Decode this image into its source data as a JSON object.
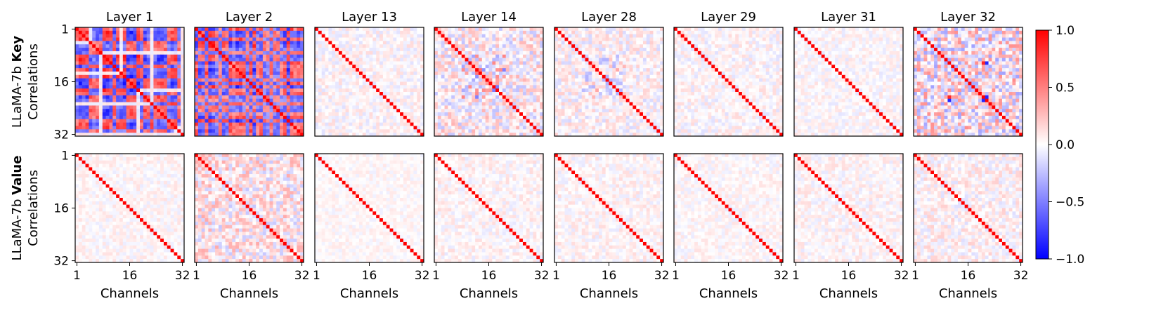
{
  "chart_data": {
    "type": "heatmap",
    "grid_size": 32,
    "value_range": [
      -1.0,
      1.0
    ],
    "colormap": "bwr",
    "colorbar": {
      "ticks": [
        1.0,
        0.5,
        0.0,
        -0.5,
        -1.0
      ],
      "tick_labels": [
        "1.0",
        "0.5",
        "0.0",
        "−0.5",
        "−1.0"
      ]
    },
    "layers": [
      "Layer 1",
      "Layer 2",
      "Layer 13",
      "Layer 14",
      "Layer 28",
      "Layer 29",
      "Layer 31",
      "Layer 32"
    ],
    "rows": [
      {
        "label_prefix": "LLaMA-7b ",
        "label_bold": "Key",
        "label_line2": "Correlations"
      },
      {
        "label_prefix": "LLaMA-7b ",
        "label_bold": "Value",
        "label_line2": "Correlations"
      }
    ],
    "y_tick_labels": [
      "1",
      "16",
      "32"
    ],
    "x_tick_labels": [
      "1",
      "16",
      "32"
    ],
    "xlabel": "Channels",
    "diagonal_value": 1.0,
    "panels": {
      "key": [
        {
          "layer": "Layer 1",
          "pattern": "strong block structure",
          "off_diagonal_range": [
            -1.0,
            1.0
          ]
        },
        {
          "layer": "Layer 2",
          "pattern": "strong block structure",
          "off_diagonal_range": [
            -0.9,
            0.9
          ]
        },
        {
          "layer": "Layer 13",
          "pattern": "weak",
          "off_diagonal_range": [
            -0.3,
            0.3
          ]
        },
        {
          "layer": "Layer 14",
          "pattern": "central cluster",
          "off_diagonal_range": [
            -0.6,
            0.6
          ]
        },
        {
          "layer": "Layer 28",
          "pattern": "weak central cluster",
          "off_diagonal_range": [
            -0.3,
            0.4
          ]
        },
        {
          "layer": "Layer 29",
          "pattern": "weak",
          "off_diagonal_range": [
            -0.3,
            0.3
          ]
        },
        {
          "layer": "Layer 31",
          "pattern": "weak",
          "off_diagonal_range": [
            -0.25,
            0.25
          ]
        },
        {
          "layer": "Layer 32",
          "pattern": "weak with few strong cells",
          "off_diagonal_range": [
            -0.9,
            0.9
          ]
        }
      ],
      "value": [
        {
          "layer": "Layer 1",
          "pattern": "near-identity",
          "off_diagonal_range": [
            -0.25,
            0.25
          ]
        },
        {
          "layer": "Layer 2",
          "pattern": "near-identity",
          "off_diagonal_range": [
            -0.7,
            0.6
          ]
        },
        {
          "layer": "Layer 13",
          "pattern": "near-identity",
          "off_diagonal_range": [
            -0.2,
            0.2
          ]
        },
        {
          "layer": "Layer 14",
          "pattern": "near-identity",
          "off_diagonal_range": [
            -0.3,
            0.3
          ]
        },
        {
          "layer": "Layer 28",
          "pattern": "near-identity",
          "off_diagonal_range": [
            -0.3,
            0.3
          ]
        },
        {
          "layer": "Layer 29",
          "pattern": "near-identity",
          "off_diagonal_range": [
            -0.25,
            0.25
          ]
        },
        {
          "layer": "Layer 31",
          "pattern": "near-identity",
          "off_diagonal_range": [
            -0.3,
            0.3
          ]
        },
        {
          "layer": "Layer 32",
          "pattern": "near-identity",
          "off_diagonal_range": [
            -0.4,
            0.3
          ]
        }
      ]
    }
  }
}
